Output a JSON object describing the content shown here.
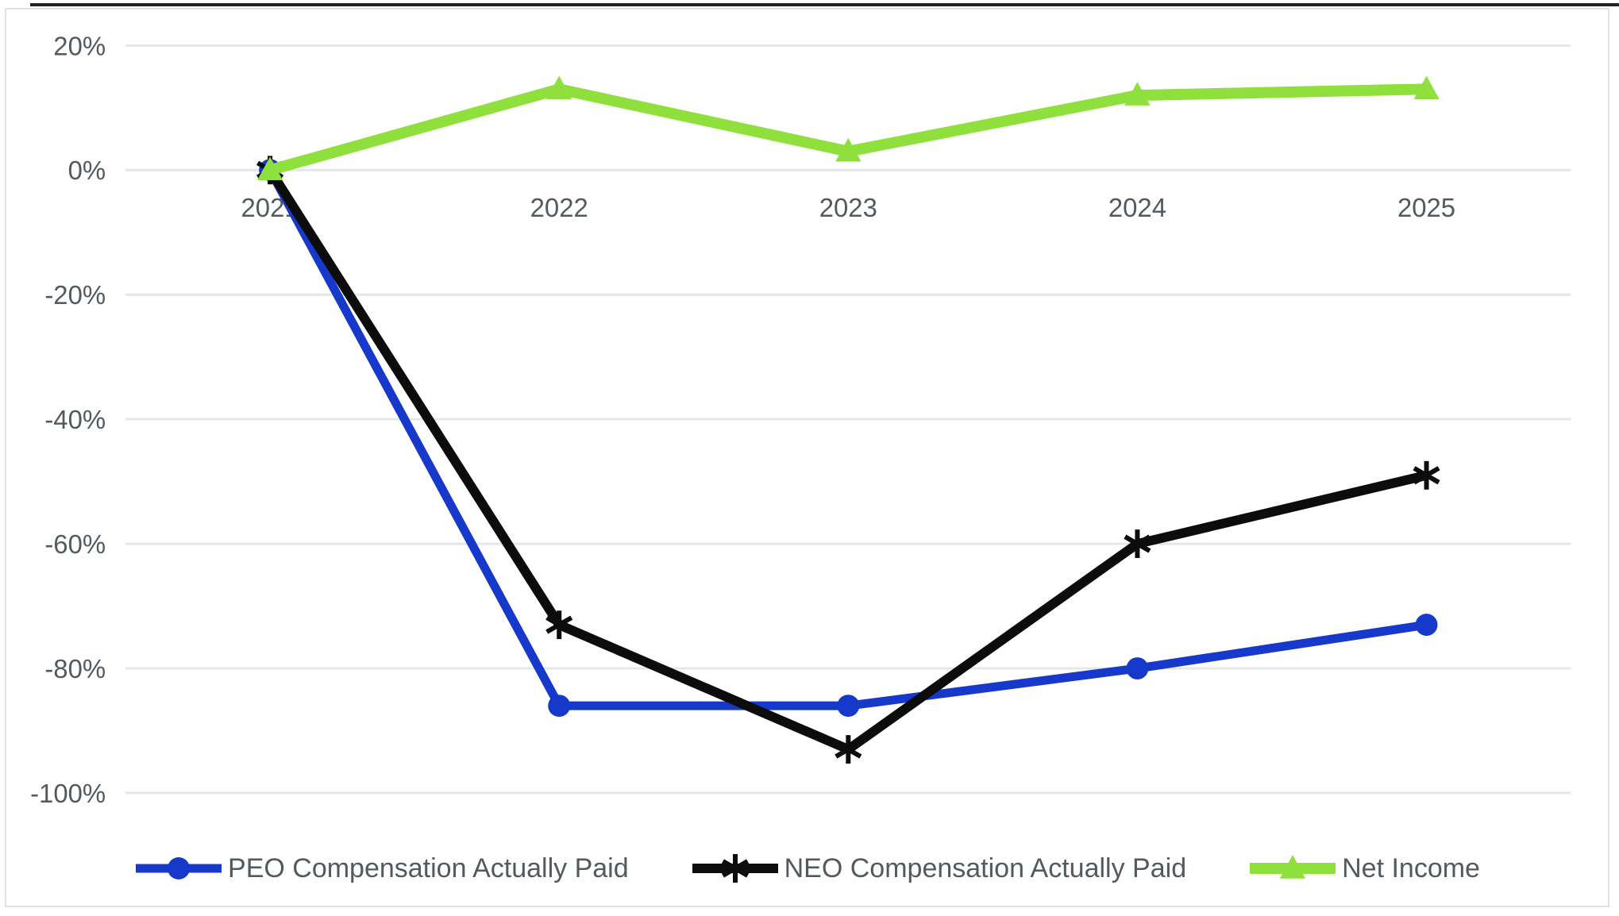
{
  "page": {
    "background": "#ffffff"
  },
  "decorations": {
    "top_rule_color": "#212121",
    "frame_border_color": "#dde3e3"
  },
  "axis": {
    "text_color": "#525a5d",
    "grid_color": "#e3e7e7"
  },
  "chart_data": {
    "type": "line",
    "title": "",
    "xlabel": "",
    "ylabel": "",
    "categories": [
      "2021",
      "2022",
      "2023",
      "2024",
      "2025"
    ],
    "yticks": [
      {
        "value": 20,
        "label": "20%"
      },
      {
        "value": 0,
        "label": "0%"
      },
      {
        "value": -20,
        "label": "-20%"
      },
      {
        "value": -40,
        "label": "-40%"
      },
      {
        "value": -60,
        "label": "-60%"
      },
      {
        "value": -80,
        "label": "-80%"
      },
      {
        "value": -100,
        "label": "-100%"
      }
    ],
    "ylim": [
      -110,
      26
    ],
    "grid": true,
    "legend_position": "bottom",
    "series": [
      {
        "name": "PEO Compensation Actually Paid",
        "color": "#1639cb",
        "marker": "circle",
        "values": [
          0,
          -86,
          -86,
          -80,
          -73
        ]
      },
      {
        "name": "NEO Compensation Actually Paid",
        "color": "#0c0c0c",
        "marker": "asterisk",
        "values": [
          0,
          -73,
          -93,
          -60,
          -49
        ]
      },
      {
        "name": "Net Income",
        "color": "#8fe03d",
        "marker": "triangle",
        "values": [
          0,
          13,
          3,
          12,
          13
        ]
      }
    ]
  }
}
